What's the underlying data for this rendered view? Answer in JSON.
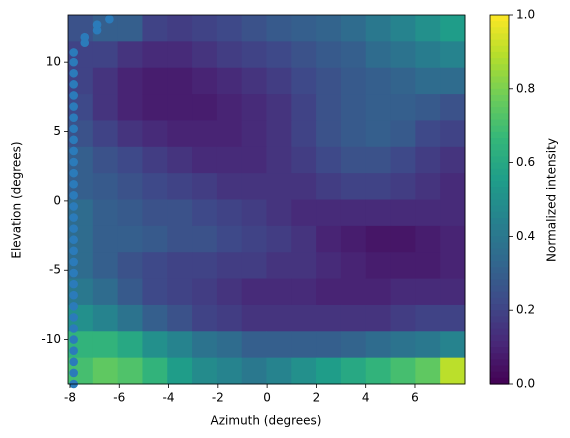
{
  "chart_data": {
    "type": "heatmap",
    "xlabel": "Azimuth (degrees)",
    "ylabel": "Elevation (degrees)",
    "colorbar_label": "Normalized intensity",
    "colormap": "viridis",
    "xlim": [
      -8.08,
      8.03
    ],
    "ylim": [
      -13.2,
      13.4
    ],
    "xticks": [
      -8,
      -6,
      -4,
      -2,
      0,
      2,
      4,
      6
    ],
    "yticks": [
      -10,
      -5,
      0,
      5,
      10
    ],
    "clim": [
      0,
      1
    ],
    "cticks": [
      {
        "value": 0,
        "label": "0.0"
      },
      0.2,
      0.4,
      0.6,
      0.8,
      {
        "value": 1,
        "label": "1.0"
      }
    ],
    "values": [
      [
        0.25,
        0.3,
        0.3,
        0.2,
        0.18,
        0.2,
        0.22,
        0.25,
        0.28,
        0.3,
        0.32,
        0.35,
        0.4,
        0.45,
        0.5,
        0.55
      ],
      [
        0.2,
        0.2,
        0.15,
        0.12,
        0.12,
        0.15,
        0.18,
        0.2,
        0.22,
        0.25,
        0.28,
        0.3,
        0.35,
        0.38,
        0.42,
        0.45
      ],
      [
        0.2,
        0.15,
        0.1,
        0.08,
        0.08,
        0.1,
        0.12,
        0.15,
        0.18,
        0.22,
        0.25,
        0.28,
        0.3,
        0.32,
        0.35,
        0.35
      ],
      [
        0.22,
        0.15,
        0.1,
        0.08,
        0.08,
        0.08,
        0.1,
        0.12,
        0.15,
        0.2,
        0.25,
        0.28,
        0.3,
        0.3,
        0.28,
        0.25
      ],
      [
        0.25,
        0.2,
        0.15,
        0.12,
        0.1,
        0.1,
        0.1,
        0.12,
        0.15,
        0.2,
        0.25,
        0.28,
        0.3,
        0.28,
        0.22,
        0.2
      ],
      [
        0.3,
        0.25,
        0.22,
        0.18,
        0.15,
        0.12,
        0.12,
        0.12,
        0.15,
        0.18,
        0.22,
        0.25,
        0.25,
        0.22,
        0.18,
        0.15
      ],
      [
        0.3,
        0.28,
        0.25,
        0.22,
        0.2,
        0.18,
        0.15,
        0.15,
        0.15,
        0.15,
        0.18,
        0.2,
        0.2,
        0.18,
        0.15,
        0.12
      ],
      [
        0.35,
        0.3,
        0.28,
        0.25,
        0.25,
        0.22,
        0.2,
        0.18,
        0.15,
        0.12,
        0.12,
        0.12,
        0.12,
        0.12,
        0.12,
        0.12
      ],
      [
        0.35,
        0.3,
        0.3,
        0.28,
        0.25,
        0.25,
        0.22,
        0.2,
        0.18,
        0.15,
        0.1,
        0.08,
        0.06,
        0.06,
        0.08,
        0.1
      ],
      [
        0.35,
        0.3,
        0.25,
        0.22,
        0.2,
        0.2,
        0.18,
        0.18,
        0.15,
        0.15,
        0.12,
        0.1,
        0.08,
        0.08,
        0.08,
        0.1
      ],
      [
        0.4,
        0.35,
        0.28,
        0.22,
        0.2,
        0.18,
        0.15,
        0.12,
        0.12,
        0.12,
        0.1,
        0.1,
        0.1,
        0.12,
        0.12,
        0.12
      ],
      [
        0.5,
        0.45,
        0.38,
        0.3,
        0.25,
        0.2,
        0.18,
        0.15,
        0.15,
        0.15,
        0.15,
        0.15,
        0.15,
        0.18,
        0.2,
        0.2
      ],
      [
        0.65,
        0.65,
        0.6,
        0.5,
        0.45,
        0.38,
        0.35,
        0.3,
        0.3,
        0.3,
        0.3,
        0.32,
        0.35,
        0.38,
        0.4,
        0.45
      ],
      [
        0.7,
        0.75,
        0.72,
        0.65,
        0.55,
        0.48,
        0.45,
        0.4,
        0.45,
        0.5,
        0.55,
        0.6,
        0.65,
        0.7,
        0.75,
        0.9
      ]
    ],
    "points": {
      "color": "#2b7bba",
      "x": [
        -7.85,
        -7.85,
        -7.85,
        -7.85,
        -7.85,
        -7.85,
        -7.85,
        -7.85,
        -7.85,
        -7.85,
        -7.85,
        -7.85,
        -7.85,
        -7.85,
        -7.85,
        -7.85,
        -7.85,
        -7.85,
        -7.85,
        -7.85,
        -7.85,
        -7.85,
        -7.85,
        -7.85,
        -7.85,
        -7.85,
        -7.85,
        -7.85,
        -7.85,
        -7.85,
        -7.85,
        -7.4,
        -7.4,
        -6.9,
        -6.9,
        -6.4
      ],
      "y": [
        -13.2,
        -12.4,
        -11.6,
        -10.8,
        -10,
        -9.2,
        -8.4,
        -7.6,
        -6.8,
        -6,
        -5.2,
        -4.4,
        -3.6,
        -2.8,
        -2,
        -1.2,
        -0.4,
        0.4,
        1.2,
        2,
        2.8,
        3.6,
        4.4,
        5.2,
        6,
        6.8,
        7.6,
        8.4,
        9.2,
        10,
        10.7,
        11.4,
        11.8,
        12.3,
        12.7,
        13.1
      ]
    }
  }
}
